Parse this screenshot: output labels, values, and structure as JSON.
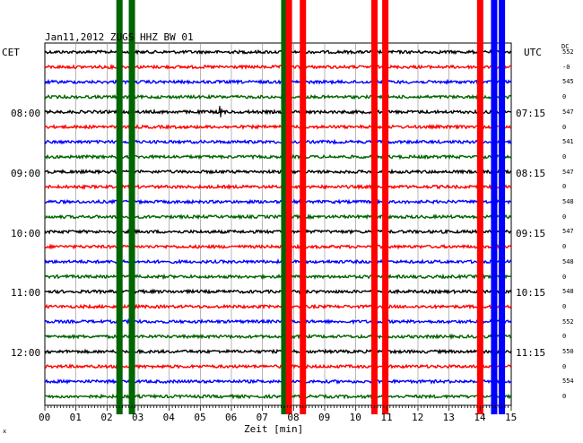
{
  "header": {
    "title": "Jan11,2012   ZUGS HHZ BW 01",
    "left_zone": "CET",
    "right_zone": "UTC",
    "dc_label": "DC"
  },
  "time_labels_cet": [
    "08:00",
    "09:00",
    "10:00",
    "11:00",
    "12:00"
  ],
  "time_labels_utc": [
    "07:15",
    "08:15",
    "09:15",
    "10:15",
    "11:15"
  ],
  "dc_values": [
    "552",
    "-0",
    "545",
    "0",
    "547",
    "0",
    "541",
    "0",
    "547",
    "0",
    "548",
    "0",
    "547",
    "0",
    "548",
    "0",
    "548",
    "0",
    "552",
    "0",
    "550",
    "0",
    "554",
    "0"
  ],
  "x_axis": {
    "label": "Zeit [min]",
    "ticks": [
      "00",
      "01",
      "02",
      "03",
      "04",
      "05",
      "06",
      "07",
      "08",
      "09",
      "10",
      "11",
      "12",
      "13",
      "14",
      "15"
    ]
  },
  "corner_mark": "x",
  "chart_data": {
    "type": "line",
    "title": "Jan11,2012   ZUGS HHZ BW 01",
    "xlabel": "Zeit [min]",
    "ylabel": "",
    "xlim": [
      0,
      15
    ],
    "trace_count": 24,
    "trace_color_cycle": [
      "#000000",
      "#ff0000",
      "#0000ff",
      "#006400"
    ],
    "grid": true,
    "events": [
      {
        "minute": 2.4,
        "color": "#006400"
      },
      {
        "minute": 2.8,
        "color": "#006400"
      },
      {
        "minute": 7.7,
        "color": "#006400"
      },
      {
        "minute": 7.85,
        "color": "#ff0000"
      },
      {
        "minute": 8.3,
        "color": "#ff0000"
      },
      {
        "minute": 10.6,
        "color": "#ff0000"
      },
      {
        "minute": 10.95,
        "color": "#ff0000"
      },
      {
        "minute": 14.0,
        "color": "#ff0000"
      },
      {
        "minute": 14.45,
        "color": "#0000ff"
      },
      {
        "minute": 14.7,
        "color": "#0000ff"
      }
    ]
  }
}
